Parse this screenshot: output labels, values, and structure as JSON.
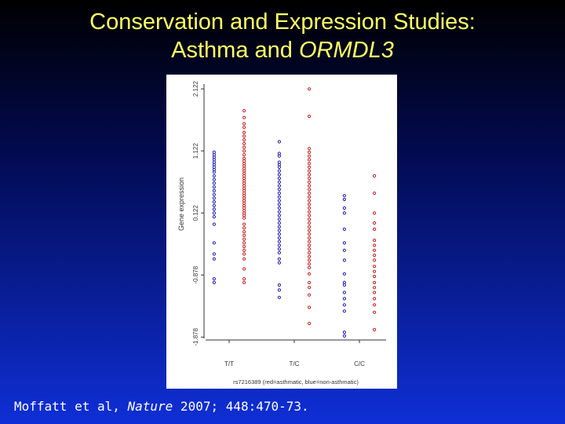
{
  "slide": {
    "title_line1": "Conservation and Expression Studies:",
    "title_line2_prefix": "Asthma and ",
    "title_line2_gene": "ORMDL3",
    "citation_prefix": "Moffatt et al, ",
    "citation_journal": "Nature",
    "citation_suffix": " 2007; 448:470-73.",
    "colors": {
      "title": "#ffff66",
      "citation": "#ffffff"
    }
  },
  "chart_data": {
    "type": "scatter",
    "title": "",
    "xlabel": "rs7216389 (red=asthmatic, blue=non-asthmatic)",
    "ylabel": "Gene expression",
    "categories": [
      "T/T",
      "T/C",
      "C/C"
    ],
    "yticks": [
      "2.122",
      "1.122",
      "0.122",
      "-0.878",
      "-1.878"
    ],
    "ylim": [
      -1.9,
      2.2
    ],
    "grid": false,
    "series": [
      {
        "colorName": "non-asthmatic",
        "color": "#2020b0",
        "offset": -0.23,
        "points": [
          [
            0,
            1.1
          ],
          [
            0,
            1.06
          ],
          [
            0,
            1.02
          ],
          [
            0,
            0.98
          ],
          [
            0,
            0.94
          ],
          [
            0,
            0.9
          ],
          [
            0,
            0.86
          ],
          [
            0,
            0.82
          ],
          [
            0,
            0.78
          ],
          [
            0,
            0.72
          ],
          [
            0,
            0.66
          ],
          [
            0,
            0.6
          ],
          [
            0,
            0.54
          ],
          [
            0,
            0.48
          ],
          [
            0,
            0.42
          ],
          [
            0,
            0.36
          ],
          [
            0,
            0.3
          ],
          [
            0,
            0.24
          ],
          [
            0,
            0.18
          ],
          [
            0,
            0.12
          ],
          [
            0,
            0.06
          ],
          [
            0,
            -0.06
          ],
          [
            0,
            -0.36
          ],
          [
            0,
            -0.54
          ],
          [
            0,
            -0.62
          ],
          [
            0,
            -0.94
          ],
          [
            0,
            -1.0
          ],
          [
            1,
            1.27
          ],
          [
            1,
            1.08
          ],
          [
            1,
            1.04
          ],
          [
            1,
            0.94
          ],
          [
            1,
            0.9
          ],
          [
            1,
            0.86
          ],
          [
            1,
            0.8
          ],
          [
            1,
            0.74
          ],
          [
            1,
            0.68
          ],
          [
            1,
            0.62
          ],
          [
            1,
            0.56
          ],
          [
            1,
            0.5
          ],
          [
            1,
            0.44
          ],
          [
            1,
            0.38
          ],
          [
            1,
            0.32
          ],
          [
            1,
            0.26
          ],
          [
            1,
            0.2
          ],
          [
            1,
            0.14
          ],
          [
            1,
            0.08
          ],
          [
            1,
            0.02
          ],
          [
            1,
            -0.04
          ],
          [
            1,
            -0.1
          ],
          [
            1,
            -0.16
          ],
          [
            1,
            -0.22
          ],
          [
            1,
            -0.28
          ],
          [
            1,
            -0.34
          ],
          [
            1,
            -0.4
          ],
          [
            1,
            -0.46
          ],
          [
            1,
            -0.52
          ],
          [
            1,
            -0.62
          ],
          [
            1,
            -0.68
          ],
          [
            1,
            -1.04
          ],
          [
            1,
            -1.12
          ],
          [
            1,
            -1.24
          ],
          [
            2,
            0.4
          ],
          [
            2,
            0.34
          ],
          [
            2,
            0.2
          ],
          [
            2,
            0.12
          ],
          [
            2,
            -0.14
          ],
          [
            2,
            -0.36
          ],
          [
            2,
            -0.48
          ],
          [
            2,
            -0.64
          ],
          [
            2,
            -0.86
          ],
          [
            2,
            -1.0
          ],
          [
            2,
            -1.04
          ],
          [
            2,
            -1.16
          ],
          [
            2,
            -1.26
          ],
          [
            2,
            -1.36
          ],
          [
            2,
            -1.46
          ],
          [
            2,
            -1.8
          ],
          [
            2,
            -1.86
          ]
        ]
      },
      {
        "colorName": "asthmatic",
        "color": "#c02020",
        "offset": 0.23,
        "points": [
          [
            0,
            1.77
          ],
          [
            0,
            1.66
          ],
          [
            0,
            1.56
          ],
          [
            0,
            1.5
          ],
          [
            0,
            1.42
          ],
          [
            0,
            1.36
          ],
          [
            0,
            1.3
          ],
          [
            0,
            1.24
          ],
          [
            0,
            1.18
          ],
          [
            0,
            1.12
          ],
          [
            0,
            1.06
          ],
          [
            0,
            1.0
          ],
          [
            0,
            0.96
          ],
          [
            0,
            0.92
          ],
          [
            0,
            0.88
          ],
          [
            0,
            0.84
          ],
          [
            0,
            0.8
          ],
          [
            0,
            0.76
          ],
          [
            0,
            0.72
          ],
          [
            0,
            0.68
          ],
          [
            0,
            0.64
          ],
          [
            0,
            0.6
          ],
          [
            0,
            0.56
          ],
          [
            0,
            0.52
          ],
          [
            0,
            0.48
          ],
          [
            0,
            0.44
          ],
          [
            0,
            0.4
          ],
          [
            0,
            0.36
          ],
          [
            0,
            0.32
          ],
          [
            0,
            0.28
          ],
          [
            0,
            0.24
          ],
          [
            0,
            0.2
          ],
          [
            0,
            0.16
          ],
          [
            0,
            0.12
          ],
          [
            0,
            0.08
          ],
          [
            0,
            0.04
          ],
          [
            0,
            -0.06
          ],
          [
            0,
            -0.12
          ],
          [
            0,
            -0.18
          ],
          [
            0,
            -0.24
          ],
          [
            0,
            -0.3
          ],
          [
            0,
            -0.36
          ],
          [
            0,
            -0.42
          ],
          [
            0,
            -0.48
          ],
          [
            0,
            -0.54
          ],
          [
            0,
            -0.62
          ],
          [
            0,
            -0.78
          ],
          [
            0,
            -0.94
          ],
          [
            0,
            -1.0
          ],
          [
            1,
            2.12
          ],
          [
            1,
            1.68
          ],
          [
            1,
            1.16
          ],
          [
            1,
            1.1
          ],
          [
            1,
            1.04
          ],
          [
            1,
            0.98
          ],
          [
            1,
            0.92
          ],
          [
            1,
            0.86
          ],
          [
            1,
            0.8
          ],
          [
            1,
            0.74
          ],
          [
            1,
            0.68
          ],
          [
            1,
            0.62
          ],
          [
            1,
            0.56
          ],
          [
            1,
            0.5
          ],
          [
            1,
            0.44
          ],
          [
            1,
            0.38
          ],
          [
            1,
            0.32
          ],
          [
            1,
            0.26
          ],
          [
            1,
            0.2
          ],
          [
            1,
            0.14
          ],
          [
            1,
            0.08
          ],
          [
            1,
            0.02
          ],
          [
            1,
            -0.04
          ],
          [
            1,
            -0.1
          ],
          [
            1,
            -0.16
          ],
          [
            1,
            -0.22
          ],
          [
            1,
            -0.28
          ],
          [
            1,
            -0.34
          ],
          [
            1,
            -0.4
          ],
          [
            1,
            -0.46
          ],
          [
            1,
            -0.52
          ],
          [
            1,
            -0.58
          ],
          [
            1,
            -0.64
          ],
          [
            1,
            -0.7
          ],
          [
            1,
            -0.76
          ],
          [
            1,
            -0.86
          ],
          [
            1,
            -1.0
          ],
          [
            1,
            -1.08
          ],
          [
            1,
            -1.2
          ],
          [
            1,
            -1.4
          ],
          [
            1,
            -1.66
          ],
          [
            2,
            0.72
          ],
          [
            2,
            0.44
          ],
          [
            2,
            0.12
          ],
          [
            2,
            -0.04
          ],
          [
            2,
            -0.14
          ],
          [
            2,
            -0.32
          ],
          [
            2,
            -0.4
          ],
          [
            2,
            -0.48
          ],
          [
            2,
            -0.56
          ],
          [
            2,
            -0.64
          ],
          [
            2,
            -0.74
          ],
          [
            2,
            -0.82
          ],
          [
            2,
            -0.9
          ],
          [
            2,
            -1.0
          ],
          [
            2,
            -1.08
          ],
          [
            2,
            -1.16
          ],
          [
            2,
            -1.26
          ],
          [
            2,
            -1.36
          ],
          [
            2,
            -1.48
          ],
          [
            2,
            -1.76
          ]
        ]
      }
    ]
  }
}
